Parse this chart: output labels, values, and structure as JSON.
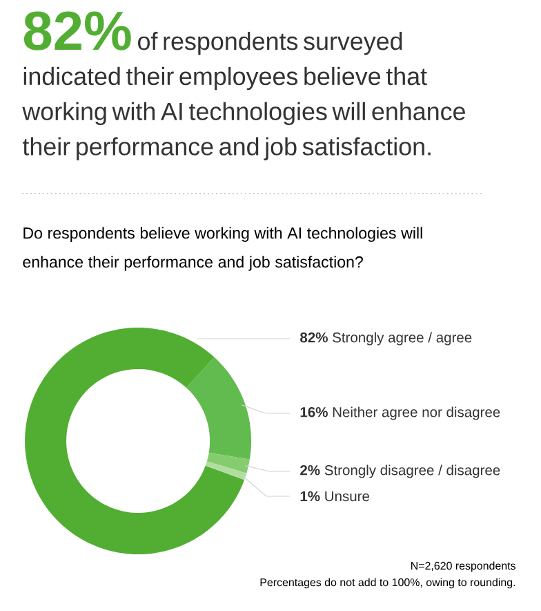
{
  "chart_data": {
    "type": "donut",
    "title": "**82%** of respondents surveyed indicated their employees believe that working with AI technologies will enhance their performance and job satisfaction.",
    "subtitle": "Do respondents believe working with AI technologies will enhance their performance and job satisfaction?",
    "categories": [
      "Strongly agree / agree",
      "Neither agree nor disagree",
      "Strongly disagree / disagree",
      "Unsure"
    ],
    "values": [
      82,
      16,
      2,
      1
    ],
    "value_labels": [
      "82%",
      "16%",
      "2%",
      "1%"
    ],
    "colors": [
      "#52ae32",
      "#62bb4f",
      "#85cc6f",
      "#b1dea0"
    ],
    "annotations": [
      "N=2,620 respondents",
      "Percentages do not add to 100%, owing to rounding."
    ]
  }
}
